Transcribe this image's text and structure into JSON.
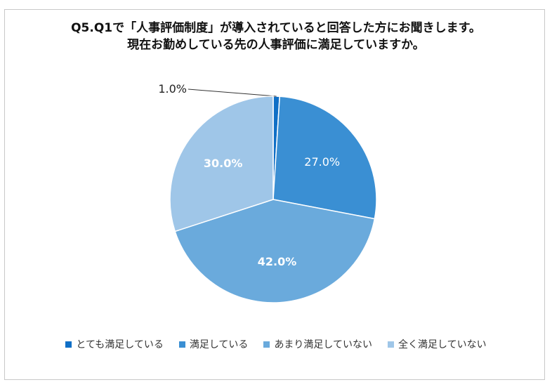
{
  "chart_data": {
    "type": "pie",
    "title_lines": [
      "Q5.Q1で「人事評価制度」が導入されていると回答した方にお聞きします。",
      "現在お勤めしている先の人事評価に満足していますか。"
    ],
    "categories": [
      "とても満足している",
      "満足している",
      "あまり満足していない",
      "全く満足していない"
    ],
    "values": [
      1.0,
      27.0,
      42.0,
      30.0
    ],
    "labels": [
      "1.0%",
      "27.0%",
      "42.0%",
      "30.0%"
    ],
    "colors": [
      "#0f6fc6",
      "#3a8fd3",
      "#6aaadc",
      "#9fc6e8"
    ],
    "legend_position": "bottom"
  }
}
